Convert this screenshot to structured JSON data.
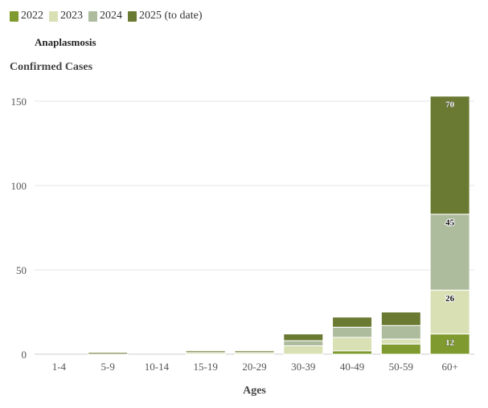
{
  "legend": [
    {
      "label": "2022",
      "color": "#7f9a2e"
    },
    {
      "label": "2023",
      "color": "#d8e0b4"
    },
    {
      "label": "2024",
      "color": "#aebc9e"
    },
    {
      "label": "2025 (to date)",
      "color": "#6a7a33"
    }
  ],
  "chart_data": {
    "type": "bar",
    "stacked": true,
    "title": "Anaplasmosis",
    "ylabel": "Confirmed Cases",
    "xlabel": "Ages",
    "ylim": [
      0,
      155
    ],
    "yticks": [
      0,
      50,
      100,
      150
    ],
    "grid": true,
    "legend_position": "top-left",
    "categories": [
      "1-4",
      "5-9",
      "10-14",
      "15-19",
      "20-29",
      "30-39",
      "40-49",
      "50-59",
      "60+"
    ],
    "series": [
      {
        "name": "2022",
        "color": "#7f9a2e",
        "values": [
          0,
          0,
          0,
          0,
          0,
          0,
          2,
          6,
          12
        ]
      },
      {
        "name": "2023",
        "color": "#d8e0b4",
        "values": [
          0,
          0,
          0,
          1,
          1,
          5,
          8,
          3,
          26
        ]
      },
      {
        "name": "2024",
        "color": "#aebc9e",
        "values": [
          0,
          0,
          0,
          0,
          0,
          3,
          6,
          8,
          45
        ]
      },
      {
        "name": "2025 (to date)",
        "color": "#6a7a33",
        "values": [
          0,
          1,
          0,
          1,
          1,
          4,
          6,
          8,
          70
        ]
      }
    ],
    "data_labels": [
      {
        "category": "60+",
        "series": "2022",
        "text": "12"
      },
      {
        "category": "60+",
        "series": "2023",
        "text": "26"
      },
      {
        "category": "60+",
        "series": "2024",
        "text": "45"
      },
      {
        "category": "60+",
        "series": "2025 (to date)",
        "text": "70"
      }
    ]
  }
}
